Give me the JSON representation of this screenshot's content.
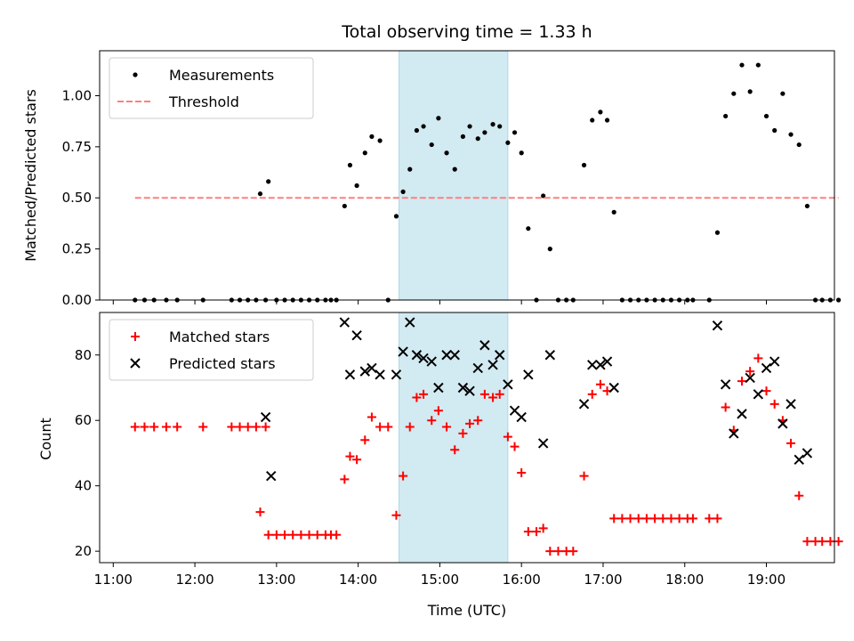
{
  "chart_data": {
    "title": "Total observing time = 1.33 h",
    "xlabel": "Time (UTC)",
    "x_ticks": [
      "11:00",
      "12:00",
      "13:00",
      "14:00",
      "15:00",
      "16:00",
      "17:00",
      "18:00",
      "19:00"
    ],
    "highlight_span": {
      "start": "14:30",
      "end": "15:50",
      "color": "#add8e6"
    },
    "colors": {
      "measurements": "#000000",
      "threshold": "#ff7f7f",
      "matched": "#ff0000",
      "predicted": "#000000",
      "span": "#add8e6"
    },
    "panels": [
      {
        "type": "scatter",
        "ylabel": "Matched/Predicted stars",
        "ylim": [
          0,
          1.22
        ],
        "yticks": [
          "0.00",
          "0.25",
          "0.50",
          "0.75",
          "1.00"
        ],
        "ytick_values": [
          0,
          0.25,
          0.5,
          0.75,
          1.0
        ],
        "legend_position": "upper-left",
        "series": [
          {
            "name": "Measurements",
            "marker": "dot",
            "points": [
              [
                "11:16",
                0
              ],
              [
                "11:23",
                0
              ],
              [
                "11:30",
                0
              ],
              [
                "11:39",
                0
              ],
              [
                "11:47",
                0
              ],
              [
                "12:06",
                0
              ],
              [
                "12:27",
                0
              ],
              [
                "12:33",
                0
              ],
              [
                "12:39",
                0
              ],
              [
                "12:45",
                0
              ],
              [
                "12:52",
                0
              ],
              [
                "12:48",
                0.52
              ],
              [
                "12:54",
                0.58
              ],
              [
                "13:00",
                0
              ],
              [
                "13:06",
                0
              ],
              [
                "13:12",
                0
              ],
              [
                "13:18",
                0
              ],
              [
                "13:24",
                0
              ],
              [
                "13:30",
                0
              ],
              [
                "13:36",
                0
              ],
              [
                "13:40",
                0
              ],
              [
                "13:44",
                0
              ],
              [
                "13:50",
                0.46
              ],
              [
                "13:54",
                0.66
              ],
              [
                "13:59",
                0.56
              ],
              [
                "14:05",
                0.72
              ],
              [
                "14:10",
                0.8
              ],
              [
                "14:16",
                0.78
              ],
              [
                "14:22",
                0
              ],
              [
                "14:28",
                0.41
              ],
              [
                "14:33",
                0.53
              ],
              [
                "14:38",
                0.64
              ],
              [
                "14:43",
                0.83
              ],
              [
                "14:48",
                0.85
              ],
              [
                "14:54",
                0.76
              ],
              [
                "14:59",
                0.89
              ],
              [
                "15:05",
                0.72
              ],
              [
                "15:11",
                0.64
              ],
              [
                "15:17",
                0.8
              ],
              [
                "15:22",
                0.85
              ],
              [
                "15:28",
                0.79
              ],
              [
                "15:33",
                0.82
              ],
              [
                "15:39",
                0.86
              ],
              [
                "15:44",
                0.85
              ],
              [
                "15:50",
                0.77
              ],
              [
                "15:55",
                0.82
              ],
              [
                "16:00",
                0.72
              ],
              [
                "16:05",
                0.35
              ],
              [
                "16:11",
                0
              ],
              [
                "16:16",
                0.51
              ],
              [
                "16:21",
                0.25
              ],
              [
                "16:27",
                0
              ],
              [
                "16:33",
                0
              ],
              [
                "16:38",
                0
              ],
              [
                "16:46",
                0.66
              ],
              [
                "16:52",
                0.88
              ],
              [
                "16:58",
                0.92
              ],
              [
                "17:03",
                0.88
              ],
              [
                "17:08",
                0.43
              ],
              [
                "17:14",
                0
              ],
              [
                "17:20",
                0
              ],
              [
                "17:26",
                0
              ],
              [
                "17:32",
                0
              ],
              [
                "17:38",
                0
              ],
              [
                "17:44",
                0
              ],
              [
                "17:50",
                0
              ],
              [
                "17:56",
                0
              ],
              [
                "18:02",
                0
              ],
              [
                "18:06",
                0
              ],
              [
                "18:18",
                0
              ],
              [
                "18:24",
                0.33
              ],
              [
                "18:30",
                0.9
              ],
              [
                "18:36",
                1.01
              ],
              [
                "18:42",
                1.15
              ],
              [
                "18:48",
                1.02
              ],
              [
                "18:54",
                1.15
              ],
              [
                "19:00",
                0.9
              ],
              [
                "19:06",
                0.83
              ],
              [
                "19:12",
                1.01
              ],
              [
                "19:18",
                0.81
              ],
              [
                "19:24",
                0.76
              ],
              [
                "19:30",
                0.46
              ],
              [
                "19:36",
                0
              ],
              [
                "19:41",
                0
              ],
              [
                "19:47",
                0
              ],
              [
                "19:53",
                0
              ]
            ]
          },
          {
            "name": "Threshold",
            "marker": "dashed-line",
            "points": [
              [
                "11:16",
                0.5
              ],
              [
                "19:53",
                0.5
              ]
            ]
          }
        ]
      },
      {
        "type": "scatter",
        "ylabel": "Count",
        "ylim": [
          16.5,
          93
        ],
        "yticks": [
          "20",
          "40",
          "60",
          "80"
        ],
        "ytick_values": [
          20,
          40,
          60,
          80
        ],
        "legend_position": "upper-left",
        "series": [
          {
            "name": "Matched stars",
            "marker": "plus",
            "points": [
              [
                "11:16",
                58
              ],
              [
                "11:23",
                58
              ],
              [
                "11:30",
                58
              ],
              [
                "11:39",
                58
              ],
              [
                "11:47",
                58
              ],
              [
                "12:06",
                58
              ],
              [
                "12:27",
                58
              ],
              [
                "12:33",
                58
              ],
              [
                "12:39",
                58
              ],
              [
                "12:45",
                58
              ],
              [
                "12:52",
                58
              ],
              [
                "12:48",
                32
              ],
              [
                "12:54",
                25
              ],
              [
                "13:00",
                25
              ],
              [
                "13:06",
                25
              ],
              [
                "13:12",
                25
              ],
              [
                "13:18",
                25
              ],
              [
                "13:24",
                25
              ],
              [
                "13:30",
                25
              ],
              [
                "13:36",
                25
              ],
              [
                "13:40",
                25
              ],
              [
                "13:44",
                25
              ],
              [
                "13:50",
                42
              ],
              [
                "13:54",
                49
              ],
              [
                "13:59",
                48
              ],
              [
                "14:05",
                54
              ],
              [
                "14:10",
                61
              ],
              [
                "14:16",
                58
              ],
              [
                "14:22",
                58
              ],
              [
                "14:28",
                31
              ],
              [
                "14:33",
                43
              ],
              [
                "14:38",
                58
              ],
              [
                "14:43",
                67
              ],
              [
                "14:48",
                68
              ],
              [
                "14:54",
                60
              ],
              [
                "14:59",
                63
              ],
              [
                "15:05",
                58
              ],
              [
                "15:11",
                51
              ],
              [
                "15:17",
                56
              ],
              [
                "15:22",
                59
              ],
              [
                "15:28",
                60
              ],
              [
                "15:33",
                68
              ],
              [
                "15:39",
                67
              ],
              [
                "15:44",
                68
              ],
              [
                "15:50",
                55
              ],
              [
                "15:55",
                52
              ],
              [
                "16:00",
                44
              ],
              [
                "16:05",
                26
              ],
              [
                "16:11",
                26
              ],
              [
                "16:16",
                27
              ],
              [
                "16:21",
                20
              ],
              [
                "16:27",
                20
              ],
              [
                "16:33",
                20
              ],
              [
                "16:38",
                20
              ],
              [
                "16:46",
                43
              ],
              [
                "16:52",
                68
              ],
              [
                "16:58",
                71
              ],
              [
                "17:03",
                69
              ],
              [
                "17:08",
                30
              ],
              [
                "17:14",
                30
              ],
              [
                "17:20",
                30
              ],
              [
                "17:26",
                30
              ],
              [
                "17:32",
                30
              ],
              [
                "17:38",
                30
              ],
              [
                "17:44",
                30
              ],
              [
                "17:50",
                30
              ],
              [
                "17:56",
                30
              ],
              [
                "18:02",
                30
              ],
              [
                "18:06",
                30
              ],
              [
                "18:18",
                30
              ],
              [
                "18:24",
                30
              ],
              [
                "18:30",
                64
              ],
              [
                "18:36",
                57
              ],
              [
                "18:42",
                72
              ],
              [
                "18:48",
                75
              ],
              [
                "18:54",
                79
              ],
              [
                "19:00",
                69
              ],
              [
                "19:06",
                65
              ],
              [
                "19:12",
                60
              ],
              [
                "19:18",
                53
              ],
              [
                "19:24",
                37
              ],
              [
                "19:30",
                23
              ],
              [
                "19:36",
                23
              ],
              [
                "19:41",
                23
              ],
              [
                "19:47",
                23
              ],
              [
                "19:53",
                23
              ]
            ]
          },
          {
            "name": "Predicted stars",
            "marker": "x",
            "points": [
              [
                "12:52",
                61
              ],
              [
                "12:56",
                43
              ],
              [
                "13:50",
                90
              ],
              [
                "13:54",
                74
              ],
              [
                "13:59",
                86
              ],
              [
                "14:05",
                75
              ],
              [
                "14:10",
                76
              ],
              [
                "14:16",
                74
              ],
              [
                "14:28",
                74
              ],
              [
                "14:33",
                81
              ],
              [
                "14:38",
                90
              ],
              [
                "14:43",
                80
              ],
              [
                "14:48",
                79
              ],
              [
                "14:54",
                78
              ],
              [
                "14:59",
                70
              ],
              [
                "15:05",
                80
              ],
              [
                "15:11",
                80
              ],
              [
                "15:17",
                70
              ],
              [
                "15:22",
                69
              ],
              [
                "15:28",
                76
              ],
              [
                "15:33",
                83
              ],
              [
                "15:39",
                77
              ],
              [
                "15:44",
                80
              ],
              [
                "15:50",
                71
              ],
              [
                "15:55",
                63
              ],
              [
                "16:00",
                61
              ],
              [
                "16:05",
                74
              ],
              [
                "16:16",
                53
              ],
              [
                "16:21",
                80
              ],
              [
                "16:46",
                65
              ],
              [
                "16:52",
                77
              ],
              [
                "16:58",
                77
              ],
              [
                "17:03",
                78
              ],
              [
                "17:08",
                70
              ],
              [
                "18:24",
                89
              ],
              [
                "18:30",
                71
              ],
              [
                "18:36",
                56
              ],
              [
                "18:42",
                62
              ],
              [
                "18:48",
                73
              ],
              [
                "18:54",
                68
              ],
              [
                "19:00",
                76
              ],
              [
                "19:06",
                78
              ],
              [
                "19:12",
                59
              ],
              [
                "19:18",
                65
              ],
              [
                "19:24",
                48
              ],
              [
                "19:30",
                50
              ]
            ]
          }
        ]
      }
    ]
  }
}
